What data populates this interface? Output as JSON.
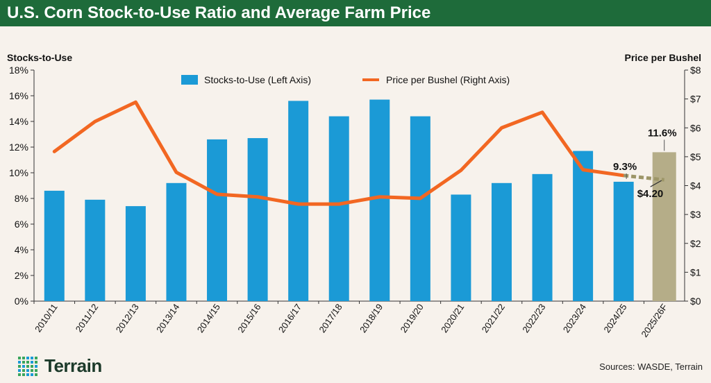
{
  "header": {
    "title": "U.S. Corn Stock-to-Use Ratio and Average Farm Price"
  },
  "footer": {
    "brand": "Terrain",
    "sources": "Sources: WASDE, Terrain"
  },
  "colors": {
    "header_bg": "#1e6b3a",
    "bar": "#1b9ad6",
    "bar_forecast": "#b5ad88",
    "line": "#f26722",
    "line_forecast": "#9d9668",
    "text": "#111111"
  },
  "chart_data": {
    "type": "bar",
    "title": "U.S. Corn Stock-to-Use Ratio and Average Farm Price",
    "categories": [
      "2010/11",
      "2011/12",
      "2012/13",
      "2013/14",
      "2014/15",
      "2015/16",
      "2016/17",
      "2017/18",
      "2018/19",
      "2019/20",
      "2020/21",
      "2021/22",
      "2022/23",
      "2023/24",
      "2024/25",
      "2025/26F"
    ],
    "y_left_title": "Stocks-to-Use",
    "y_right_title": "Price per Bushel",
    "y_left_ticks": [
      "0%",
      "2%",
      "4%",
      "6%",
      "8%",
      "10%",
      "12%",
      "14%",
      "16%",
      "18%"
    ],
    "y_right_ticks": [
      "$0",
      "$1",
      "$2",
      "$3",
      "$4",
      "$5",
      "$6",
      "$7",
      "$8"
    ],
    "ylim_left": [
      0,
      18
    ],
    "ylim_right": [
      0,
      8
    ],
    "series": [
      {
        "name": "Stocks-to-Use (Left Axis)",
        "type": "bar",
        "axis": "left",
        "values": [
          8.6,
          7.9,
          7.4,
          9.2,
          12.6,
          12.7,
          15.6,
          14.4,
          15.7,
          14.4,
          8.3,
          9.2,
          9.9,
          11.7,
          9.3,
          11.6
        ],
        "forecast_index": 15
      },
      {
        "name": "Price per Bushel (Right Axis)",
        "type": "line",
        "axis": "right",
        "values": [
          5.18,
          6.22,
          6.89,
          4.46,
          3.7,
          3.61,
          3.36,
          3.36,
          3.61,
          3.56,
          4.53,
          6.0,
          6.54,
          4.55,
          4.35,
          4.2
        ],
        "forecast_from_index": 14
      }
    ],
    "annotations": [
      {
        "text": "9.3%",
        "category": "2024/25"
      },
      {
        "text": "11.6%",
        "category": "2025/26F"
      },
      {
        "text": "$4.20",
        "category": "2025/26F"
      }
    ],
    "legend": "top-center"
  }
}
